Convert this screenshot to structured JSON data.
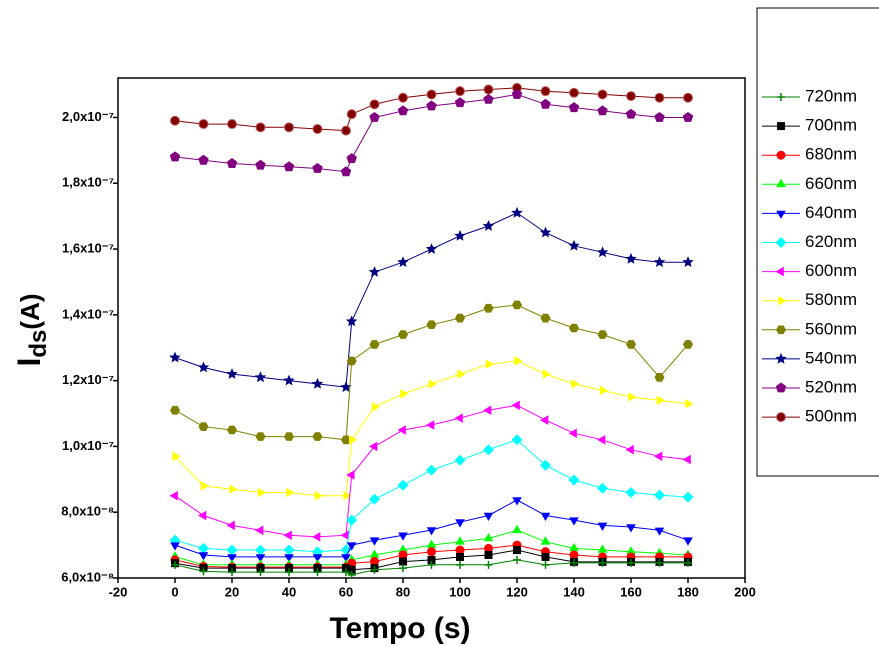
{
  "chart_data": {
    "type": "line",
    "x_label": "Tempo (s)",
    "y_label": "I",
    "y_label_sub": "ds",
    "y_label_unit": "(A)",
    "xlim": [
      -20,
      200
    ],
    "xticks": [
      -20,
      0,
      20,
      40,
      60,
      80,
      100,
      120,
      140,
      160,
      180,
      200
    ],
    "ylim": [
      6e-08,
      2.12e-07
    ],
    "yticks": [
      {
        "value": 6e-08,
        "label": "6,0x10⁻⁸"
      },
      {
        "value": 8e-08,
        "label": "8,0x10⁻⁸"
      },
      {
        "value": 1e-07,
        "label": "1,0x10⁻⁷"
      },
      {
        "value": 1.2e-07,
        "label": "1,2x10⁻⁷"
      },
      {
        "value": 1.4e-07,
        "label": "1,4x10⁻⁷"
      },
      {
        "value": 1.6e-07,
        "label": "1,6x10⁻⁷"
      },
      {
        "value": 1.8e-07,
        "label": "1,8x10⁻⁷"
      },
      {
        "value": 2e-07,
        "label": "2,0x10⁻⁷"
      }
    ],
    "x": [
      0,
      10,
      20,
      30,
      40,
      50,
      60,
      62,
      70,
      80,
      90,
      100,
      110,
      120,
      130,
      140,
      150,
      160,
      170,
      180
    ],
    "series": [
      {
        "name": "720nm",
        "color": "#008000",
        "marker": "plus",
        "values": [
          6.4e-08,
          6.2e-08,
          6.18e-08,
          6.18e-08,
          6.18e-08,
          6.18e-08,
          6.18e-08,
          6.09e-08,
          6.25e-08,
          6.3e-08,
          6.4e-08,
          6.4e-08,
          6.4e-08,
          6.55e-08,
          6.4e-08,
          6.46e-08,
          6.46e-08,
          6.46e-08,
          6.46e-08,
          6.46e-08
        ]
      },
      {
        "name": "700nm",
        "color": "#000000",
        "marker": "square",
        "values": [
          6.45e-08,
          6.3e-08,
          6.3e-08,
          6.3e-08,
          6.3e-08,
          6.3e-08,
          6.3e-08,
          6.25e-08,
          6.3e-08,
          6.5e-08,
          6.55e-08,
          6.64e-08,
          6.7e-08,
          6.85e-08,
          6.64e-08,
          6.49e-08,
          6.49e-08,
          6.49e-08,
          6.49e-08,
          6.49e-08
        ]
      },
      {
        "name": "680nm",
        "color": "#ff0000",
        "marker": "circle",
        "values": [
          6.55e-08,
          6.35e-08,
          6.33e-08,
          6.33e-08,
          6.33e-08,
          6.33e-08,
          6.33e-08,
          6.45e-08,
          6.5e-08,
          6.7e-08,
          6.8e-08,
          6.85e-08,
          6.9e-08,
          7e-08,
          6.8e-08,
          6.7e-08,
          6.64e-08,
          6.64e-08,
          6.64e-08,
          6.64e-08
        ]
      },
      {
        "name": "660nm",
        "color": "#00ff00",
        "marker": "triangle-up",
        "values": [
          6.65e-08,
          6.4e-08,
          6.4e-08,
          6.4e-08,
          6.4e-08,
          6.4e-08,
          6.4e-08,
          6.55e-08,
          6.7e-08,
          6.85e-08,
          7e-08,
          7.1e-08,
          7.2e-08,
          7.45e-08,
          7.1e-08,
          6.9e-08,
          6.85e-08,
          6.8e-08,
          6.75e-08,
          6.7e-08
        ]
      },
      {
        "name": "640nm",
        "color": "#0000ff",
        "marker": "triangle-down",
        "values": [
          7e-08,
          6.7e-08,
          6.64e-08,
          6.64e-08,
          6.64e-08,
          6.64e-08,
          6.64e-08,
          7e-08,
          7.15e-08,
          7.3e-08,
          7.46e-08,
          7.7e-08,
          7.9e-08,
          8.37e-08,
          7.9e-08,
          7.76e-08,
          7.6e-08,
          7.55e-08,
          7.45e-08,
          7.15e-08
        ]
      },
      {
        "name": "620nm",
        "color": "#00ffff",
        "marker": "diamond",
        "values": [
          7.15e-08,
          6.9e-08,
          6.85e-08,
          6.85e-08,
          6.85e-08,
          6.8e-08,
          6.85e-08,
          7.76e-08,
          8.4e-08,
          8.82e-08,
          9.28e-08,
          9.58e-08,
          9.9e-08,
          1.02e-07,
          9.43e-08,
          8.98e-08,
          8.73e-08,
          8.6e-08,
          8.52e-08,
          8.46e-08
        ]
      },
      {
        "name": "600nm",
        "color": "#ff00ff",
        "marker": "triangle-left",
        "values": [
          8.5e-08,
          7.9e-08,
          7.6e-08,
          7.45e-08,
          7.3e-08,
          7.25e-08,
          7.3e-08,
          9.13e-08,
          1e-07,
          1.05e-07,
          1.065e-07,
          1.086e-07,
          1.11e-07,
          1.125e-07,
          1.08e-07,
          1.04e-07,
          1.02e-07,
          9.9e-08,
          9.7e-08,
          9.6e-08
        ]
      },
      {
        "name": "580nm",
        "color": "#ffff00",
        "marker": "triangle-right",
        "values": [
          9.7e-08,
          8.8e-08,
          8.7e-08,
          8.6e-08,
          8.6e-08,
          8.5e-08,
          8.5e-08,
          1.02e-07,
          1.12e-07,
          1.16e-07,
          1.19e-07,
          1.22e-07,
          1.25e-07,
          1.26e-07,
          1.22e-07,
          1.19e-07,
          1.17e-07,
          1.15e-07,
          1.14e-07,
          1.13e-07
        ]
      },
      {
        "name": "560nm",
        "color": "#808000",
        "marker": "hexagon",
        "values": [
          1.11e-07,
          1.06e-07,
          1.05e-07,
          1.03e-07,
          1.03e-07,
          1.03e-07,
          1.02e-07,
          1.26e-07,
          1.31e-07,
          1.34e-07,
          1.37e-07,
          1.39e-07,
          1.42e-07,
          1.43e-07,
          1.39e-07,
          1.36e-07,
          1.34e-07,
          1.31e-07,
          1.21e-07,
          1.31e-07
        ]
      },
      {
        "name": "540nm",
        "color": "#000080",
        "marker": "star",
        "values": [
          1.27e-07,
          1.24e-07,
          1.22e-07,
          1.21e-07,
          1.2e-07,
          1.19e-07,
          1.18e-07,
          1.38e-07,
          1.53e-07,
          1.56e-07,
          1.6e-07,
          1.64e-07,
          1.67e-07,
          1.71e-07,
          1.65e-07,
          1.61e-07,
          1.59e-07,
          1.57e-07,
          1.56e-07,
          1.56e-07
        ]
      },
      {
        "name": "520nm",
        "color": "#800080",
        "marker": "pentagon",
        "values": [
          1.88e-07,
          1.87e-07,
          1.86e-07,
          1.855e-07,
          1.85e-07,
          1.845e-07,
          1.835e-07,
          1.875e-07,
          2e-07,
          2.02e-07,
          2.035e-07,
          2.045e-07,
          2.055e-07,
          2.07e-07,
          2.04e-07,
          2.03e-07,
          2.02e-07,
          2.01e-07,
          2e-07,
          2e-07
        ]
      },
      {
        "name": "500nm",
        "color": "#800000",
        "marker": "ball",
        "values": [
          1.99e-07,
          1.98e-07,
          1.98e-07,
          1.97e-07,
          1.97e-07,
          1.965e-07,
          1.96e-07,
          2.01e-07,
          2.04e-07,
          2.06e-07,
          2.07e-07,
          2.08e-07,
          2.085e-07,
          2.09e-07,
          2.08e-07,
          2.075e-07,
          2.07e-07,
          2.065e-07,
          2.06e-07,
          2.06e-07
        ]
      }
    ]
  }
}
